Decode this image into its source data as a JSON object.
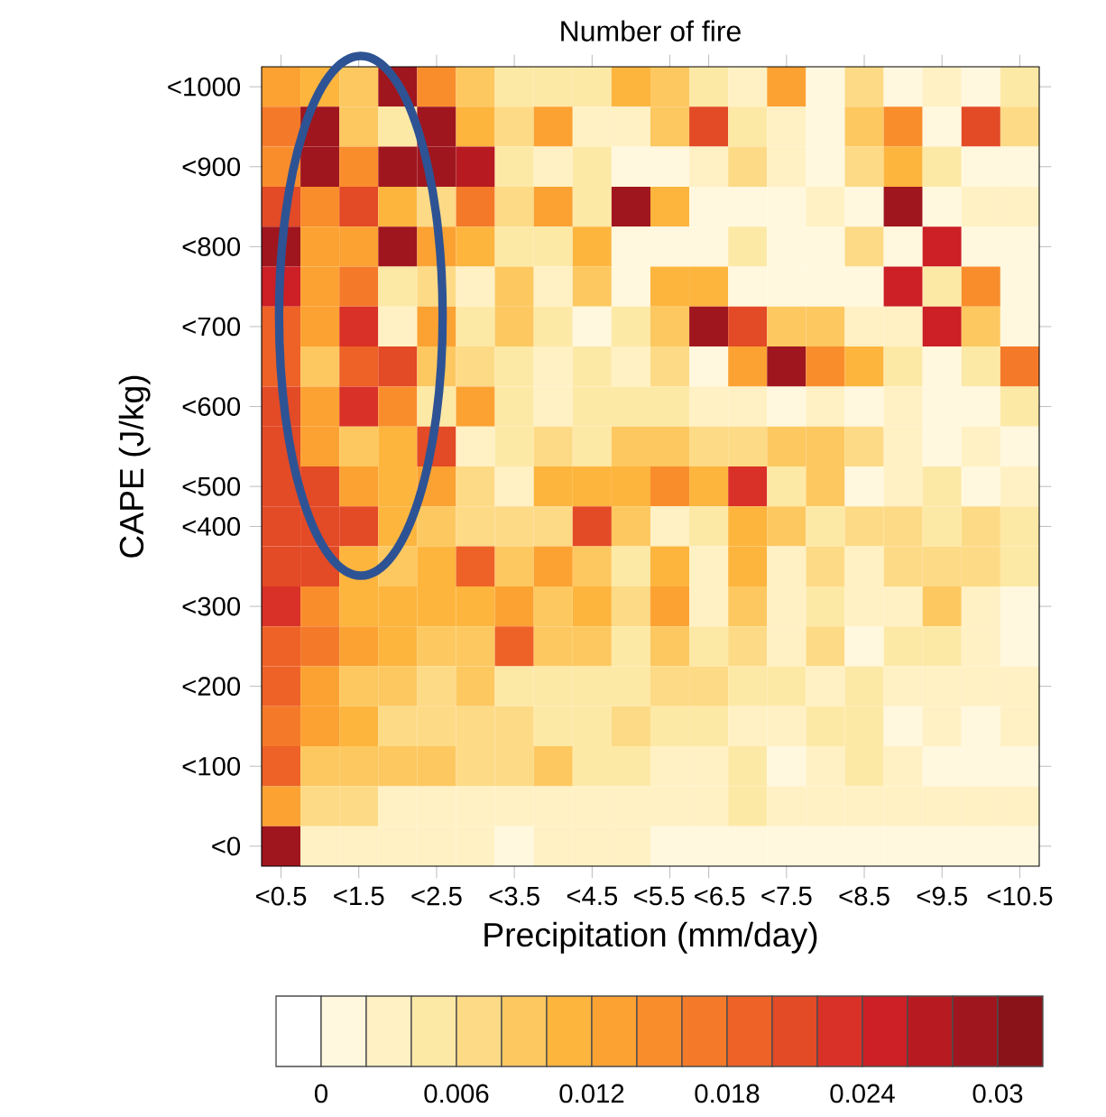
{
  "chart_data": {
    "type": "heatmap",
    "title": "Number of fire",
    "xlabel": "Precipitation (mm/day)",
    "ylabel": "CAPE (J/kg)",
    "categories": [
      "<0.5",
      null,
      "<1.5",
      null,
      "<2.5",
      null,
      "<3.5",
      null,
      "<4.5",
      null,
      "<5.5",
      "<6.5",
      null,
      "<7.5",
      null,
      "<8.5",
      null,
      "<9.5",
      null,
      "<10.5"
    ],
    "y_categories": [
      "<1000",
      null,
      "<900",
      null,
      "<800",
      null,
      "<700",
      null,
      "<600",
      null,
      "<500",
      "<400",
      null,
      "<300",
      null,
      "<200",
      null,
      "<100",
      null,
      "<0"
    ],
    "clim": [
      -0.002,
      0.032
    ],
    "cticks": [
      {
        "value": 0,
        "label": "0"
      },
      {
        "value": 0.002,
        "label": null
      },
      {
        "value": 0.004,
        "label": null
      },
      {
        "value": 0.006,
        "label": "0.006"
      },
      {
        "value": 0.008,
        "label": null
      },
      {
        "value": 0.01,
        "label": null
      },
      {
        "value": 0.012,
        "label": "0.012"
      },
      {
        "value": 0.014,
        "label": null
      },
      {
        "value": 0.016,
        "label": null
      },
      {
        "value": 0.018,
        "label": "0.018"
      },
      {
        "value": 0.02,
        "label": null
      },
      {
        "value": 0.022,
        "label": null
      },
      {
        "value": 0.024,
        "label": "0.024"
      },
      {
        "value": 0.026,
        "label": null
      },
      {
        "value": 0.028,
        "label": null
      },
      {
        "value": 0.03,
        "label": "0.03"
      }
    ],
    "cells": [
      [
        0.013,
        0.011,
        0.009,
        0.029,
        0.015,
        0.009,
        0.005,
        0.005,
        0.005,
        0.011,
        0.009,
        0.005,
        0.003,
        0.013,
        0.001,
        0.007,
        0.001,
        0.003,
        0.001,
        0.005
      ],
      [
        0.017,
        0.029,
        0.009,
        0.005,
        0.029,
        0.011,
        0.007,
        0.013,
        0.003,
        0.003,
        0.009,
        0.021,
        0.005,
        0.003,
        0.001,
        0.009,
        0.015,
        0.001,
        0.021,
        0.007
      ],
      [
        0.015,
        0.029,
        0.015,
        0.029,
        0.029,
        0.027,
        0.005,
        0.003,
        0.005,
        0.001,
        0.001,
        0.003,
        0.007,
        0.003,
        0.001,
        0.007,
        0.011,
        0.005,
        0.001,
        0.001
      ],
      [
        0.021,
        0.015,
        0.021,
        0.011,
        0.007,
        0.017,
        0.007,
        0.013,
        0.005,
        0.029,
        0.011,
        0.001,
        0.001,
        0.001,
        0.003,
        0.001,
        0.029,
        0.001,
        0.003,
        0.003
      ],
      [
        0.029,
        0.013,
        0.013,
        0.029,
        0.013,
        0.011,
        0.005,
        0.005,
        0.011,
        0.001,
        0.001,
        0.001,
        0.005,
        0.001,
        0.001,
        0.007,
        0.001,
        0.025,
        0.001,
        0.001
      ],
      [
        0.025,
        0.013,
        0.017,
        0.005,
        0.007,
        0.003,
        0.009,
        0.003,
        0.009,
        0.001,
        0.011,
        0.011,
        0.001,
        0.001,
        0.001,
        0.001,
        0.025,
        0.005,
        0.015,
        0.001
      ],
      [
        0.019,
        0.013,
        0.023,
        0.003,
        0.013,
        0.005,
        0.009,
        0.005,
        0.001,
        0.005,
        0.009,
        0.029,
        0.021,
        0.009,
        0.009,
        0.003,
        0.003,
        0.025,
        0.009,
        0.001
      ],
      [
        0.019,
        0.009,
        0.019,
        0.021,
        0.009,
        0.007,
        0.005,
        0.003,
        0.005,
        0.003,
        0.007,
        0.001,
        0.013,
        0.029,
        0.015,
        0.011,
        0.005,
        0.001,
        0.005,
        0.017
      ],
      [
        0.021,
        0.013,
        0.023,
        0.015,
        0.005,
        0.013,
        0.005,
        0.003,
        0.005,
        0.005,
        0.005,
        0.003,
        0.003,
        0.001,
        0.003,
        0.001,
        0.003,
        0.001,
        0.001,
        0.005
      ],
      [
        0.021,
        0.013,
        0.009,
        0.011,
        0.021,
        0.003,
        0.005,
        0.007,
        0.005,
        0.009,
        0.009,
        0.007,
        0.007,
        0.009,
        0.009,
        0.007,
        0.003,
        0.001,
        0.003,
        0.001
      ],
      [
        0.021,
        0.021,
        0.013,
        0.011,
        0.013,
        0.007,
        0.003,
        0.011,
        0.011,
        0.011,
        0.015,
        0.011,
        0.023,
        0.005,
        0.009,
        0.001,
        0.003,
        0.005,
        0.001,
        0.003
      ],
      [
        0.021,
        0.021,
        0.021,
        0.011,
        0.009,
        0.007,
        0.007,
        0.007,
        0.021,
        0.009,
        0.003,
        0.005,
        0.011,
        0.009,
        0.005,
        0.007,
        0.007,
        0.005,
        0.007,
        0.005
      ],
      [
        0.021,
        0.021,
        0.011,
        0.009,
        0.011,
        0.019,
        0.009,
        0.013,
        0.009,
        0.005,
        0.011,
        0.003,
        0.011,
        0.003,
        0.007,
        0.003,
        0.007,
        0.007,
        0.007,
        0.005
      ],
      [
        0.023,
        0.015,
        0.011,
        0.011,
        0.011,
        0.011,
        0.013,
        0.009,
        0.011,
        0.007,
        0.013,
        0.003,
        0.009,
        0.003,
        0.005,
        0.003,
        0.003,
        0.009,
        0.003,
        0.001
      ],
      [
        0.019,
        0.017,
        0.013,
        0.011,
        0.009,
        0.009,
        0.019,
        0.009,
        0.009,
        0.005,
        0.009,
        0.005,
        0.007,
        0.003,
        0.007,
        0.001,
        0.005,
        0.005,
        0.003,
        0.001
      ],
      [
        0.019,
        0.013,
        0.009,
        0.009,
        0.007,
        0.009,
        0.005,
        0.005,
        0.005,
        0.005,
        0.007,
        0.007,
        0.005,
        0.005,
        0.003,
        0.005,
        0.003,
        0.003,
        0.003,
        0.003
      ],
      [
        0.017,
        0.013,
        0.011,
        0.007,
        0.007,
        0.007,
        0.007,
        0.005,
        0.005,
        0.007,
        0.005,
        0.005,
        0.003,
        0.003,
        0.005,
        0.005,
        0.001,
        0.003,
        0.001,
        0.003
      ],
      [
        0.019,
        0.009,
        0.009,
        0.009,
        0.009,
        0.007,
        0.007,
        0.009,
        0.005,
        0.005,
        0.003,
        0.003,
        0.005,
        0.001,
        0.003,
        0.005,
        0.003,
        0.001,
        0.001,
        0.001
      ],
      [
        0.013,
        0.007,
        0.007,
        0.003,
        0.003,
        0.003,
        0.003,
        0.003,
        0.003,
        0.003,
        0.003,
        0.003,
        0.005,
        0.003,
        0.003,
        0.003,
        0.003,
        0.003,
        0.003,
        0.003
      ],
      [
        0.029,
        0.003,
        0.003,
        0.003,
        0.003,
        0.003,
        0.001,
        0.003,
        0.003,
        0.003,
        0.001,
        0.001,
        0.001,
        0.001,
        0.001,
        0.001,
        0.001,
        0.001,
        0.001,
        0.001
      ]
    ]
  }
}
